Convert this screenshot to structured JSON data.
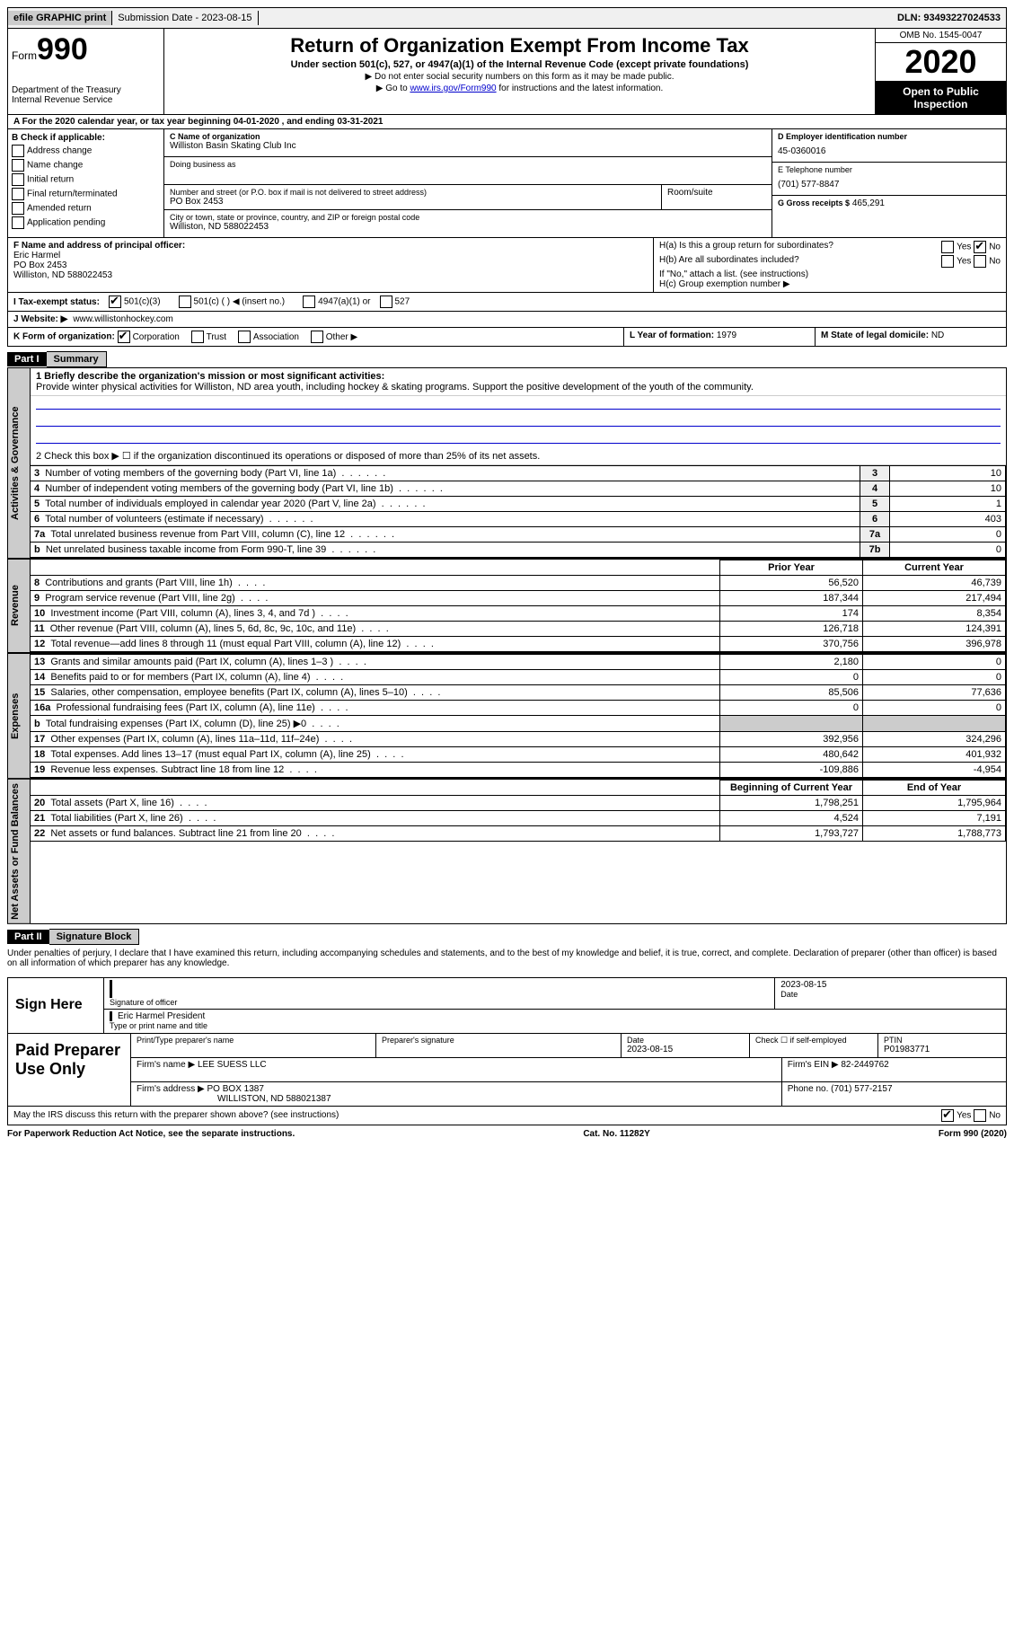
{
  "topbar": {
    "efile": "efile GRAPHIC print",
    "submission": "Submission Date - 2023-08-15",
    "dln": "DLN: 93493227024533"
  },
  "header": {
    "form_label": "Form",
    "form_no": "990",
    "dept1": "Department of the Treasury",
    "dept2": "Internal Revenue Service",
    "title": "Return of Organization Exempt From Income Tax",
    "subtitle": "Under section 501(c), 527, or 4947(a)(1) of the Internal Revenue Code (except private foundations)",
    "arrow1": "▶ Do not enter social security numbers on this form as it may be made public.",
    "arrow2_pre": "▶ Go to ",
    "arrow2_link": "www.irs.gov/Form990",
    "arrow2_post": " for instructions and the latest information.",
    "omb": "OMB No. 1545-0047",
    "year": "2020",
    "open": "Open to Public Inspection"
  },
  "row_a": "A For the 2020 calendar year, or tax year beginning 04-01-2020     , and ending 03-31-2021",
  "b": {
    "title": "B Check if applicable:",
    "opts": [
      "Address change",
      "Name change",
      "Initial return",
      "Final return/terminated",
      "Amended return",
      "Application pending"
    ]
  },
  "c": {
    "name_label": "C Name of organization",
    "name": "Williston Basin Skating Club Inc",
    "dba_label": "Doing business as",
    "street_label": "Number and street (or P.O. box if mail is not delivered to street address)",
    "street": "PO Box 2453",
    "room_label": "Room/suite",
    "city_label": "City or town, state or province, country, and ZIP or foreign postal code",
    "city": "Williston, ND   588022453"
  },
  "d": {
    "ein_label": "D Employer identification number",
    "ein": "45-0360016",
    "phone_label": "E Telephone number",
    "phone": "(701) 577-8847",
    "gross_label": "G Gross receipts $",
    "gross": "465,291"
  },
  "f": {
    "label": "F  Name and address of principal officer:",
    "name": "Eric Harmel",
    "addr1": "PO Box 2453",
    "addr2": "Williston, ND   588022453"
  },
  "h": {
    "a_label": "H(a)  Is this a group return for subordinates?",
    "b_label": "H(b)  Are all subordinates included?",
    "b_note": "If \"No,\" attach a list. (see instructions)",
    "c_label": "H(c)  Group exemption number ▶"
  },
  "i": {
    "label": "I    Tax-exempt status:",
    "opts": [
      "501(c)(3)",
      "501(c) (   ) ◀ (insert no.)",
      "4947(a)(1) or",
      "527"
    ]
  },
  "j": {
    "label": "J   Website: ▶",
    "val": "www.willistonhockey.com"
  },
  "k": {
    "label": "K Form of organization:",
    "opts": [
      "Corporation",
      "Trust",
      "Association",
      "Other ▶"
    ]
  },
  "l": {
    "label": "L Year of formation:",
    "val": "1979"
  },
  "m": {
    "label": "M State of legal domicile:",
    "val": "ND"
  },
  "part1": {
    "hdr": "Part I",
    "title": "Summary"
  },
  "summary": {
    "q1_label": "1   Briefly describe the organization's mission or most significant activities:",
    "q1_text": "Provide winter physical activities for Williston, ND area youth, including hockey & skating programs. Support the positive development of the youth of the community.",
    "q2": "2   Check this box ▶ ☐  if the organization discontinued its operations or disposed of more than 25% of its net assets.",
    "rows_gov": [
      {
        "n": "3",
        "label": "Number of voting members of the governing body (Part VI, line 1a)",
        "box": "3",
        "val": "10"
      },
      {
        "n": "4",
        "label": "Number of independent voting members of the governing body (Part VI, line 1b)",
        "box": "4",
        "val": "10"
      },
      {
        "n": "5",
        "label": "Total number of individuals employed in calendar year 2020 (Part V, line 2a)",
        "box": "5",
        "val": "1"
      },
      {
        "n": "6",
        "label": "Total number of volunteers (estimate if necessary)",
        "box": "6",
        "val": "403"
      },
      {
        "n": "7a",
        "label": "Total unrelated business revenue from Part VIII, column (C), line 12",
        "box": "7a",
        "val": "0"
      },
      {
        "n": "b",
        "label": "Net unrelated business taxable income from Form 990-T, line 39",
        "box": "7b",
        "val": "0"
      }
    ],
    "col_hdr_prior": "Prior Year",
    "col_hdr_current": "Current Year",
    "rows_rev": [
      {
        "n": "8",
        "label": "Contributions and grants (Part VIII, line 1h)",
        "prior": "56,520",
        "curr": "46,739"
      },
      {
        "n": "9",
        "label": "Program service revenue (Part VIII, line 2g)",
        "prior": "187,344",
        "curr": "217,494"
      },
      {
        "n": "10",
        "label": "Investment income (Part VIII, column (A), lines 3, 4, and 7d )",
        "prior": "174",
        "curr": "8,354"
      },
      {
        "n": "11",
        "label": "Other revenue (Part VIII, column (A), lines 5, 6d, 8c, 9c, 10c, and 11e)",
        "prior": "126,718",
        "curr": "124,391"
      },
      {
        "n": "12",
        "label": "Total revenue—add lines 8 through 11 (must equal Part VIII, column (A), line 12)",
        "prior": "370,756",
        "curr": "396,978"
      }
    ],
    "rows_exp": [
      {
        "n": "13",
        "label": "Grants and similar amounts paid (Part IX, column (A), lines 1–3 )",
        "prior": "2,180",
        "curr": "0"
      },
      {
        "n": "14",
        "label": "Benefits paid to or for members (Part IX, column (A), line 4)",
        "prior": "0",
        "curr": "0"
      },
      {
        "n": "15",
        "label": "Salaries, other compensation, employee benefits (Part IX, column (A), lines 5–10)",
        "prior": "85,506",
        "curr": "77,636"
      },
      {
        "n": "16a",
        "label": "Professional fundraising fees (Part IX, column (A), line 11e)",
        "prior": "0",
        "curr": "0"
      },
      {
        "n": "b",
        "label": "Total fundraising expenses (Part IX, column (D), line 25) ▶0",
        "prior": "",
        "curr": "",
        "grey": true
      },
      {
        "n": "17",
        "label": "Other expenses (Part IX, column (A), lines 11a–11d, 11f–24e)",
        "prior": "392,956",
        "curr": "324,296"
      },
      {
        "n": "18",
        "label": "Total expenses. Add lines 13–17 (must equal Part IX, column (A), line 25)",
        "prior": "480,642",
        "curr": "401,932"
      },
      {
        "n": "19",
        "label": "Revenue less expenses. Subtract line 18 from line 12",
        "prior": "-109,886",
        "curr": "-4,954"
      }
    ],
    "col_hdr_begin": "Beginning of Current Year",
    "col_hdr_end": "End of Year",
    "rows_net": [
      {
        "n": "20",
        "label": "Total assets (Part X, line 16)",
        "prior": "1,798,251",
        "curr": "1,795,964"
      },
      {
        "n": "21",
        "label": "Total liabilities (Part X, line 26)",
        "prior": "4,524",
        "curr": "7,191"
      },
      {
        "n": "22",
        "label": "Net assets or fund balances. Subtract line 21 from line 20",
        "prior": "1,793,727",
        "curr": "1,788,773"
      }
    ],
    "vtabs": {
      "gov": "Activities & Governance",
      "rev": "Revenue",
      "exp": "Expenses",
      "net": "Net Assets or Fund Balances"
    }
  },
  "part2": {
    "hdr": "Part II",
    "title": "Signature Block"
  },
  "sig": {
    "declaration": "Under penalties of perjury, I declare that I have examined this return, including accompanying schedules and statements, and to the best of my knowledge and belief, it is true, correct, and complete. Declaration of preparer (other than officer) is based on all information of which preparer has any knowledge.",
    "sign_here": "Sign Here",
    "sig_officer": "Signature of officer",
    "sig_date": "2023-08-15",
    "date_label": "Date",
    "officer_name": "Eric Harmel  President",
    "type_label": "Type or print name and title",
    "prep_label": "Paid Preparer Use Only",
    "prep_name_label": "Print/Type preparer's name",
    "prep_sig_label": "Preparer's signature",
    "prep_date_label": "Date",
    "prep_date": "2023-08-15",
    "check_self": "Check ☐ if self-employed",
    "ptin_label": "PTIN",
    "ptin": "P01983771",
    "firm_name_label": "Firm's name    ▶",
    "firm_name": "LEE SUESS LLC",
    "firm_ein_label": "Firm's EIN ▶",
    "firm_ein": "82-2449762",
    "firm_addr_label": "Firm's address ▶",
    "firm_addr1": "PO BOX 1387",
    "firm_addr2": "WILLISTON, ND  588021387",
    "firm_phone_label": "Phone no.",
    "firm_phone": "(701) 577-2157",
    "discuss": "May the IRS discuss this return with the preparer shown above? (see instructions)"
  },
  "footer": {
    "left": "For Paperwork Reduction Act Notice, see the separate instructions.",
    "mid": "Cat. No. 11282Y",
    "right": "Form 990 (2020)"
  }
}
